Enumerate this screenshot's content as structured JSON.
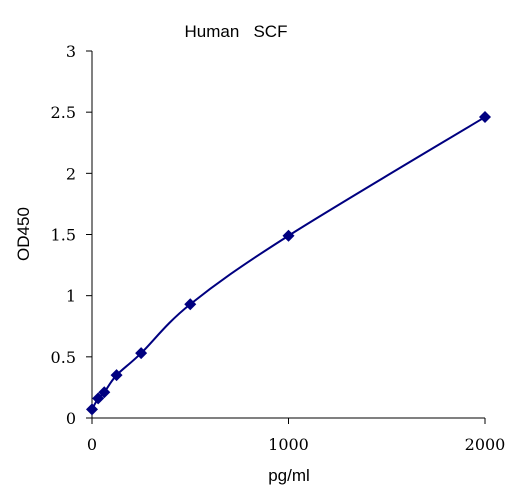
{
  "colors": {
    "series": "#000080",
    "axis": "#000000",
    "background": "#ffffff"
  },
  "chart_data": {
    "type": "line",
    "title": "Human   SCF",
    "xlabel": "pg/ml",
    "ylabel": "OD450",
    "xlim": [
      0,
      2000
    ],
    "ylim": [
      0,
      3
    ],
    "x_ticks": [
      0,
      1000,
      2000
    ],
    "x_tick_labels": [
      "0",
      "1000",
      "2000"
    ],
    "y_ticks": [
      0,
      0.5,
      1,
      1.5,
      2,
      2.5,
      3
    ],
    "y_tick_labels": [
      "0",
      "0.5",
      "1",
      "1.5",
      "2",
      "2.5",
      "3"
    ],
    "grid": false,
    "marker": "diamond",
    "series": [
      {
        "x": [
          0,
          31.25,
          62.5,
          125,
          250,
          500,
          1000,
          2000
        ],
        "y": [
          0.07,
          0.16,
          0.21,
          0.35,
          0.53,
          0.93,
          1.49,
          2.46
        ]
      }
    ]
  }
}
